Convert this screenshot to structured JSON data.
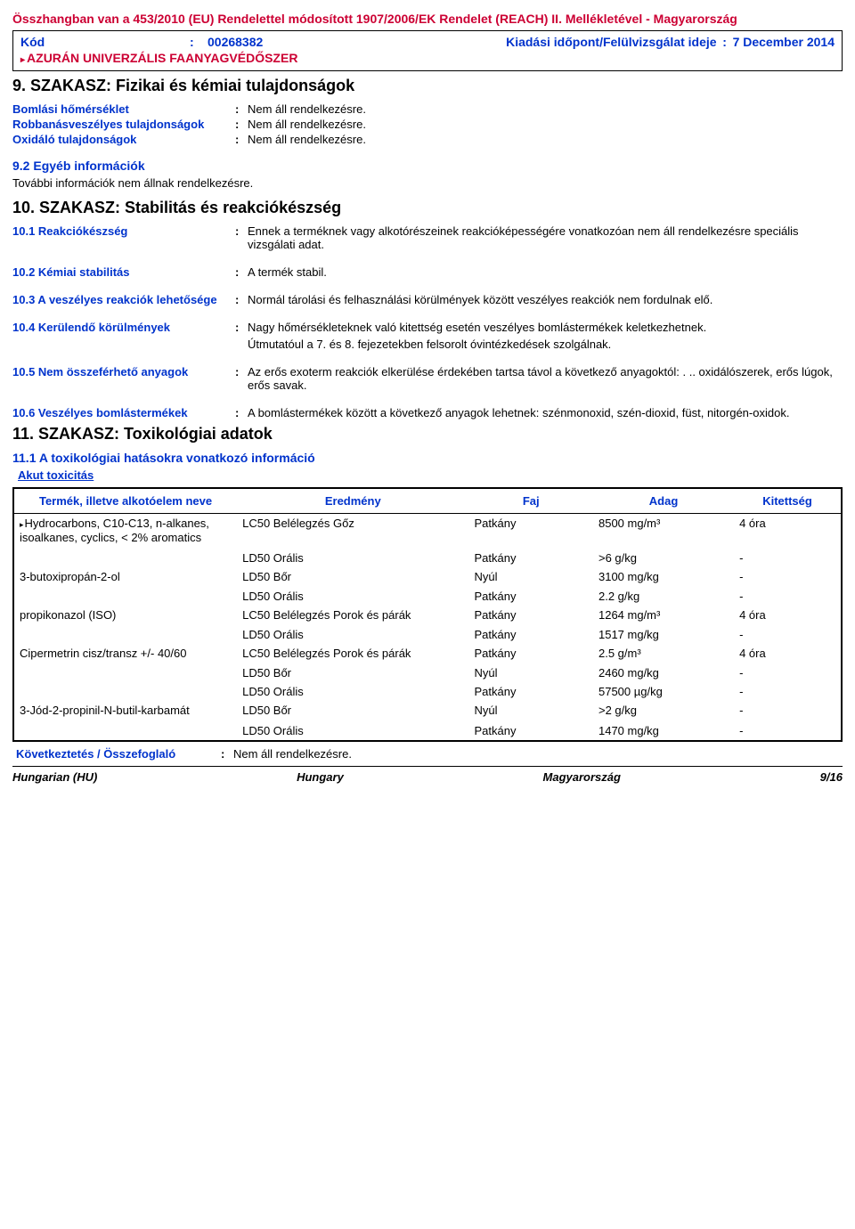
{
  "header": {
    "regulation": "Összhangban van a 453/2010 (EU) Rendelettel módosított 1907/2006/EK Rendelet (REACH) II. Mellékletével - Magyarország",
    "code_label": "Kód",
    "code_value": "00268382",
    "date_label": "Kiadási időpont/Felülvizsgálat ideje",
    "date_value": "7 December 2014",
    "product": "AZURÁN UNIVERZÁLIS FAANYAGVÉDŐSZER"
  },
  "section9": {
    "title": "9. SZAKASZ: Fizikai és kémiai tulajdonságok",
    "props": [
      {
        "label": "Bomlási hőmérséklet",
        "value": "Nem áll rendelkezésre."
      },
      {
        "label": "Robbanásveszélyes tulajdonságok",
        "value": "Nem áll rendelkezésre."
      },
      {
        "label": "Oxidáló tulajdonságok",
        "value": "Nem áll rendelkezésre."
      }
    ],
    "sub92": "9.2 Egyéb információk",
    "sub92_text": "További információk nem állnak rendelkezésre."
  },
  "section10": {
    "title": "10. SZAKASZ: Stabilitás és reakciókészség",
    "r101_label": "10.1 Reakciókészség",
    "r101_value": "Ennek a terméknek vagy alkotórészeinek reakcióképességére vonatkozóan nem áll rendelkezésre speciális vizsgálati adat.",
    "r102_label": "10.2 Kémiai stabilitás",
    "r102_value": "A termék stabil.",
    "r103_label": "10.3 A veszélyes reakciók lehetősége",
    "r103_value": "Normál tárolási és felhasználási körülmények között veszélyes reakciók nem fordulnak elő.",
    "r104_label": "10.4 Kerülendő körülmények",
    "r104_value": "Nagy hőmérsékleteknek való kitettség esetén veszélyes bomlástermékek keletkezhetnek.",
    "r104_value2": "Útmutatóul a 7. és 8. fejezetekben felsorolt óvintézkedések szolgálnak.",
    "r105_label": "10.5 Nem összeférhető anyagok",
    "r105_value": "Az erős exoterm reakciók elkerülése érdekében tartsa távol a következő anyagoktól: . .. oxidálószerek, erős lúgok, erős savak.",
    "r106_label": "10.6 Veszélyes bomlástermékek",
    "r106_value": "A bomlástermékek között a következő anyagok lehetnek: szénmonoxid, szén-dioxid, füst, nitorgén-oxidok."
  },
  "section11": {
    "title": "11. SZAKASZ: Toxikológiai adatok",
    "sub111": "11.1 A toxikológiai hatásokra vonatkozó információ",
    "akut": "Akut toxicitás",
    "headers": {
      "name": "Termék, illetve alkotóelem neve",
      "result": "Eredmény",
      "species": "Faj",
      "dose": "Adag",
      "exposure": "Kitettség"
    },
    "rows": [
      {
        "name": "Hydrocarbons, C10-C13, n-alkanes, isoalkanes, cyclics, < 2% aromatics",
        "marker": true,
        "result": "LC50 Belélegzés Gőz",
        "species": "Patkány",
        "dose": "8500 mg/m³",
        "exposure": "4 óra"
      },
      {
        "name": "",
        "result": "LD50 Orális",
        "species": "Patkány",
        "dose": ">6 g/kg",
        "exposure": "-"
      },
      {
        "name": "3-butoxipropán-2-ol",
        "result": "LD50 Bőr",
        "species": "Nyúl",
        "dose": "3100 mg/kg",
        "exposure": "-"
      },
      {
        "name": "",
        "result": "LD50 Orális",
        "species": "Patkány",
        "dose": "2.2 g/kg",
        "exposure": "-"
      },
      {
        "name": "propikonazol (ISO)",
        "result": "LC50 Belélegzés Porok és párák",
        "species": "Patkány",
        "dose": "1264 mg/m³",
        "exposure": "4 óra"
      },
      {
        "name": "",
        "result": "LD50 Orális",
        "species": "Patkány",
        "dose": "1517 mg/kg",
        "exposure": "-"
      },
      {
        "name": "Cipermetrin cisz/transz +/- 40/60",
        "result": "LC50 Belélegzés Porok és párák",
        "species": "Patkány",
        "dose": "2.5 g/m³",
        "exposure": "4 óra"
      },
      {
        "name": "",
        "result": "LD50 Bőr",
        "species": "Nyúl",
        "dose": "2460 mg/kg",
        "exposure": "-"
      },
      {
        "name": "",
        "result": "LD50 Orális",
        "species": "Patkány",
        "dose": "57500 µg/kg",
        "exposure": "-"
      },
      {
        "name": "3-Jód-2-propinil-N-butil-karbamát",
        "result": "LD50 Bőr",
        "species": "Nyúl",
        "dose": ">2 g/kg",
        "exposure": "-"
      },
      {
        "name": "",
        "result": "LD50 Orális",
        "species": "Patkány",
        "dose": "1470 mg/kg",
        "exposure": "-"
      }
    ],
    "conclusion_label": "Következtetés / Összefoglaló",
    "conclusion_value": "Nem áll rendelkezésre."
  },
  "footer": {
    "left": "Hungarian (HU)",
    "center": "Hungary",
    "right": "Magyarország",
    "page": "9/16"
  }
}
